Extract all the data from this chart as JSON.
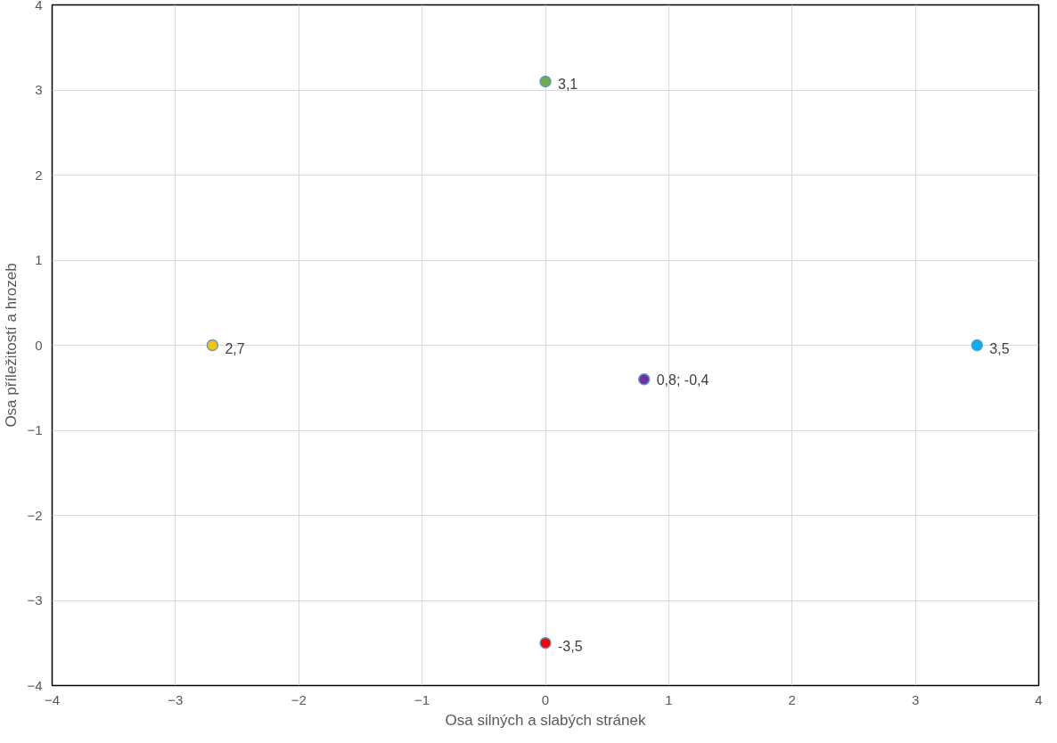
{
  "chart_data": {
    "type": "scatter",
    "xlabel": "Osa silných a slabých stránek",
    "ylabel": "Osa příležitostí a hrozeb",
    "x": [
      0,
      -2.7,
      3.5,
      0.8,
      0
    ],
    "values": [
      3.1,
      0,
      0,
      -0.4,
      -3.5
    ],
    "colors": [
      "#70ad47",
      "#ffc000",
      "#00b0f0",
      "#7030a0",
      "#ff0000"
    ],
    "annotations": [
      {
        "text": "3,1",
        "x": 0,
        "y": 3.1
      },
      {
        "text": "2,7",
        "x": -2.7,
        "y": 0
      },
      {
        "text": "3,5",
        "x": 3.5,
        "y": 0
      },
      {
        "text": "0,8; -0,4",
        "x": 0.8,
        "y": -0.4
      },
      {
        "text": "-3,5",
        "x": 0,
        "y": -3.5
      }
    ],
    "xlim": [
      -4,
      4
    ],
    "ylim": [
      -4,
      4
    ],
    "xticks": [
      -4,
      -3,
      -2,
      -1,
      0,
      1,
      2,
      3,
      4
    ],
    "yticks": [
      -4,
      -3,
      -2,
      -1,
      0,
      1,
      2,
      3,
      4
    ],
    "grid": true,
    "marker": "circle"
  }
}
